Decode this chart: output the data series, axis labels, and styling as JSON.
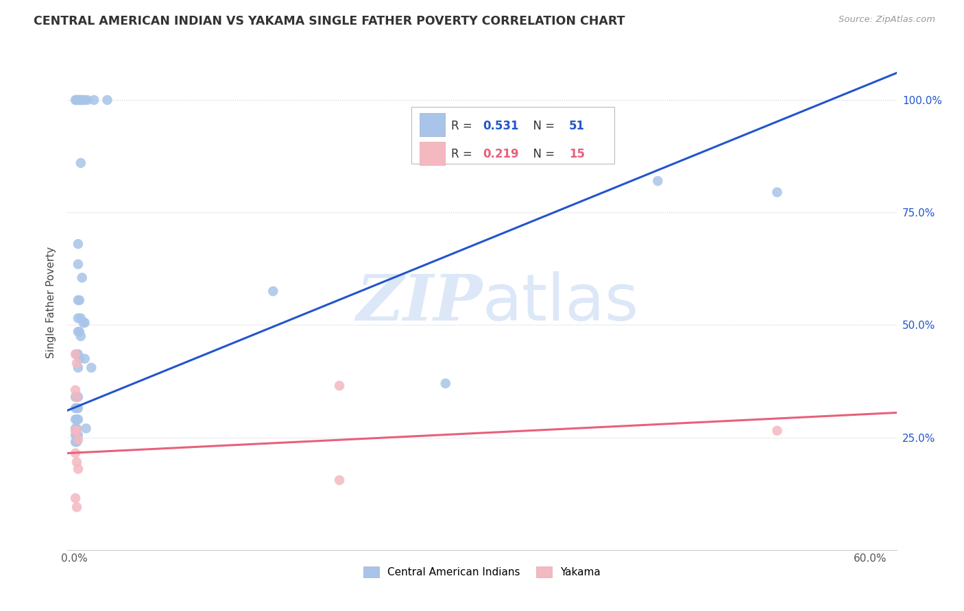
{
  "title": "CENTRAL AMERICAN INDIAN VS YAKAMA SINGLE FATHER POVERTY CORRELATION CHART",
  "source": "Source: ZipAtlas.com",
  "ylabel": "Single Father Poverty",
  "legend_label1": "Central American Indians",
  "legend_label2": "Yakama",
  "blue_color": "#a8c4e8",
  "pink_color": "#f4b8c1",
  "blue_line_color": "#2255cc",
  "pink_line_color": "#e8607a",
  "blue_scatter": [
    [
      0.001,
      1.0
    ],
    [
      0.002,
      1.0
    ],
    [
      0.003,
      1.0
    ],
    [
      0.004,
      1.0
    ],
    [
      0.005,
      1.0
    ],
    [
      0.006,
      1.0
    ],
    [
      0.008,
      1.0
    ],
    [
      0.01,
      1.0
    ],
    [
      0.015,
      1.0
    ],
    [
      0.025,
      1.0
    ],
    [
      0.005,
      0.86
    ],
    [
      0.003,
      0.68
    ],
    [
      0.003,
      0.635
    ],
    [
      0.006,
      0.605
    ],
    [
      0.003,
      0.555
    ],
    [
      0.004,
      0.555
    ],
    [
      0.003,
      0.515
    ],
    [
      0.005,
      0.515
    ],
    [
      0.007,
      0.505
    ],
    [
      0.008,
      0.505
    ],
    [
      0.003,
      0.485
    ],
    [
      0.004,
      0.485
    ],
    [
      0.005,
      0.475
    ],
    [
      0.002,
      0.435
    ],
    [
      0.003,
      0.435
    ],
    [
      0.004,
      0.425
    ],
    [
      0.008,
      0.425
    ],
    [
      0.003,
      0.405
    ],
    [
      0.013,
      0.405
    ],
    [
      0.001,
      0.34
    ],
    [
      0.002,
      0.34
    ],
    [
      0.003,
      0.34
    ],
    [
      0.001,
      0.315
    ],
    [
      0.002,
      0.315
    ],
    [
      0.003,
      0.315
    ],
    [
      0.001,
      0.29
    ],
    [
      0.002,
      0.29
    ],
    [
      0.003,
      0.29
    ],
    [
      0.001,
      0.27
    ],
    [
      0.002,
      0.27
    ],
    [
      0.001,
      0.255
    ],
    [
      0.002,
      0.255
    ],
    [
      0.003,
      0.255
    ],
    [
      0.001,
      0.24
    ],
    [
      0.002,
      0.24
    ],
    [
      0.009,
      0.27
    ],
    [
      0.15,
      0.575
    ],
    [
      0.28,
      0.37
    ],
    [
      0.44,
      0.82
    ],
    [
      0.53,
      0.795
    ]
  ],
  "pink_scatter": [
    [
      0.001,
      0.435
    ],
    [
      0.002,
      0.415
    ],
    [
      0.001,
      0.355
    ],
    [
      0.002,
      0.34
    ],
    [
      0.001,
      0.265
    ],
    [
      0.002,
      0.265
    ],
    [
      0.003,
      0.245
    ],
    [
      0.001,
      0.215
    ],
    [
      0.002,
      0.195
    ],
    [
      0.003,
      0.18
    ],
    [
      0.001,
      0.115
    ],
    [
      0.002,
      0.095
    ],
    [
      0.2,
      0.365
    ],
    [
      0.2,
      0.155
    ],
    [
      0.53,
      0.265
    ]
  ],
  "blue_line_x": [
    -0.005,
    0.62
  ],
  "blue_line_y": [
    0.31,
    1.06
  ],
  "pink_line_x": [
    -0.005,
    0.62
  ],
  "pink_line_y": [
    0.215,
    0.305
  ],
  "xlim": [
    -0.005,
    0.62
  ],
  "ylim": [
    0.0,
    1.1
  ],
  "ytick_vals": [
    0.25,
    0.5,
    0.75,
    1.0
  ],
  "ytick_labels": [
    "25.0%",
    "50.0%",
    "75.0%",
    "100.0%"
  ],
  "background_color": "#ffffff",
  "watermark_zip": "ZIP",
  "watermark_atlas": "atlas",
  "watermark_color": "#dce8f8"
}
